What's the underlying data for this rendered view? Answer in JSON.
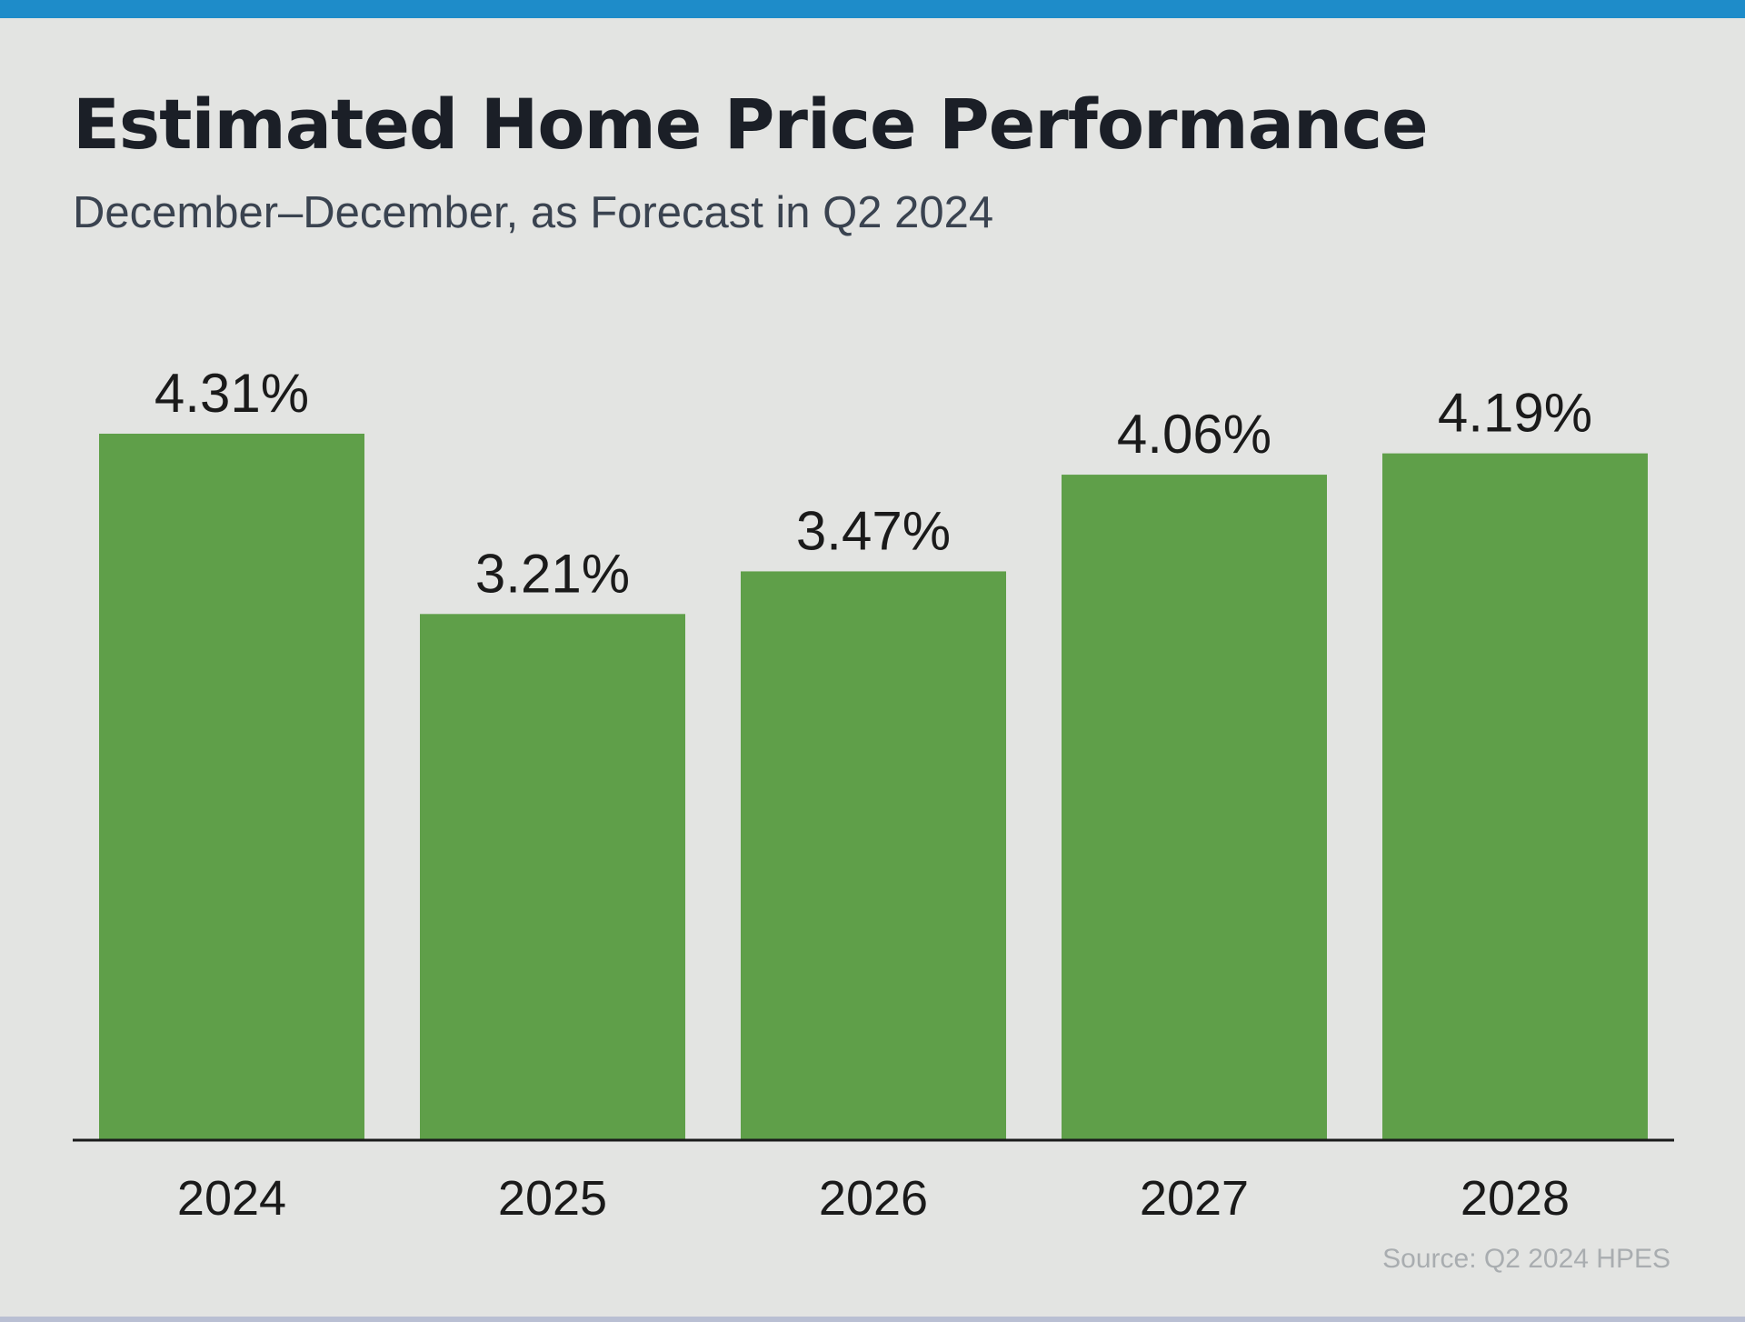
{
  "chart_data": {
    "type": "bar",
    "title": "Estimated Home Price Performance",
    "subtitle": "December–December, as Forecast in Q2 2024",
    "categories": [
      "2024",
      "2025",
      "2026",
      "2027",
      "2028"
    ],
    "values": [
      4.31,
      3.21,
      3.47,
      4.06,
      4.19
    ],
    "value_labels": [
      "4.31%",
      "3.21%",
      "3.47%",
      "4.06%",
      "4.19%"
    ],
    "xlabel": "",
    "ylabel": "",
    "ylim": [
      0,
      4.31
    ],
    "grid": false,
    "legend": "none",
    "bar_color": "#5f9f49",
    "source": "Source: Q2 2024 HPES"
  },
  "colors": {
    "accent_top_bar": "#1e8cc9",
    "background": "#e3e4e2",
    "bar": "#5f9f49",
    "axis": "#1a1a1a"
  }
}
